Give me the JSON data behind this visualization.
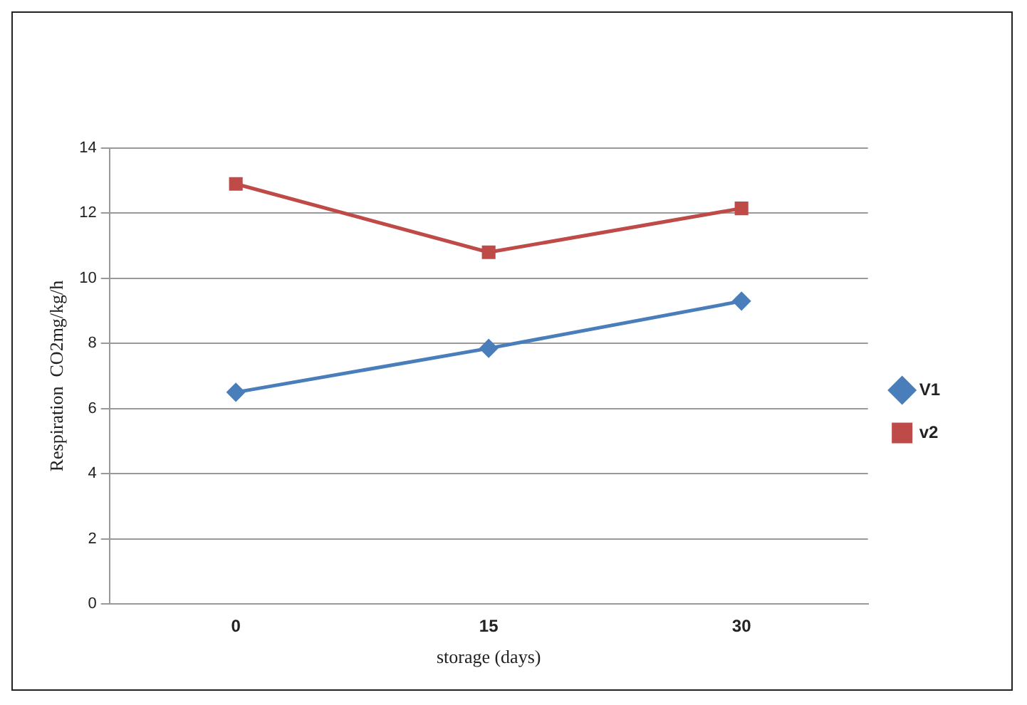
{
  "chart_data": {
    "type": "line",
    "xlabel": "storage (days)",
    "ylabel": "Respiration  CO2mg/kg/h",
    "categories": [
      "0",
      "15",
      "30"
    ],
    "series": [
      {
        "name": "V1",
        "color": "#4a7ebb",
        "values": [
          6.5,
          7.85,
          9.3
        ],
        "marker": "diamond"
      },
      {
        "name": "v2",
        "color": "#be4b48",
        "values": [
          12.9,
          10.8,
          12.15
        ],
        "marker": "square"
      }
    ],
    "ylim": [
      0,
      14
    ],
    "yticks": [
      0,
      2,
      4,
      6,
      8,
      10,
      12,
      14
    ],
    "grid": "y",
    "legend": "right",
    "line_style": "solid"
  }
}
